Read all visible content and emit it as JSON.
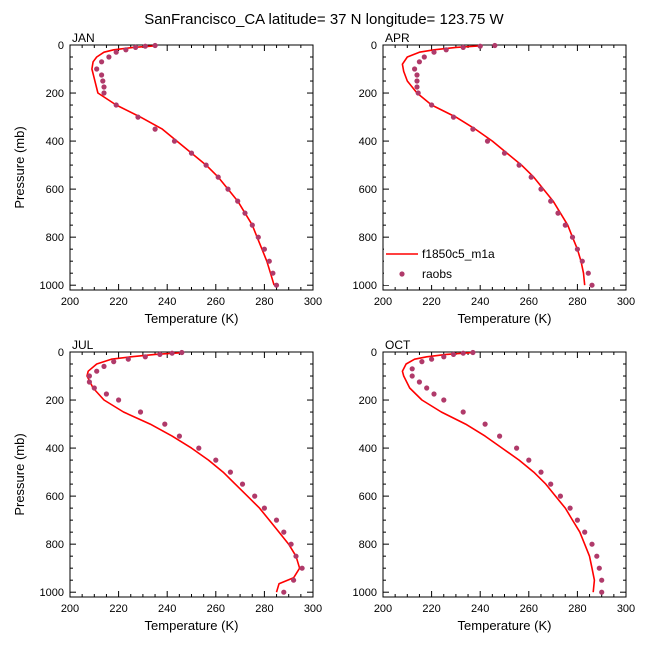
{
  "figure": {
    "title": "SanFrancisco_CA  latitude= 37 N longitude= 123.75 W"
  },
  "colors": {
    "model": "#ff0000",
    "obs": "#b03a6a",
    "axis": "#000000"
  },
  "chart_data": [
    {
      "type": "line",
      "panel": "JAN",
      "xlabel": "Temperature (K)",
      "ylabel": "Pressure (mb)",
      "xlim": [
        200,
        300
      ],
      "ylim": [
        1020,
        0
      ],
      "xticks": [
        "200",
        "220",
        "240",
        "260",
        "280",
        "300"
      ],
      "yticks": [
        "0",
        "200",
        "400",
        "600",
        "800",
        "1000"
      ],
      "legend": null,
      "series": [
        {
          "name": "f1850c5_m1a",
          "kind": "line",
          "points": [
            [
              236,
              3
            ],
            [
              226,
              10
            ],
            [
              218,
              20
            ],
            [
              214,
              30
            ],
            [
              211,
              50
            ],
            [
              209.5,
              70
            ],
            [
              209,
              100
            ],
            [
              210,
              140
            ],
            [
              211.5,
              200
            ],
            [
              219,
              250
            ],
            [
              229,
              300
            ],
            [
              238,
              350
            ],
            [
              244,
              400
            ],
            [
              250,
              450
            ],
            [
              256,
              500
            ],
            [
              261,
              550
            ],
            [
              265,
              600
            ],
            [
              269,
              650
            ],
            [
              272,
              700
            ],
            [
              275,
              750
            ],
            [
              277,
              800
            ],
            [
              279,
              850
            ],
            [
              281,
              900
            ],
            [
              282.5,
              950
            ],
            [
              284,
              1000
            ]
          ]
        },
        {
          "name": "raobs",
          "kind": "points",
          "points": [
            [
              235,
              2
            ],
            [
              231,
              5
            ],
            [
              227,
              10
            ],
            [
              223,
              20
            ],
            [
              219,
              30
            ],
            [
              216,
              50
            ],
            [
              213,
              70
            ],
            [
              211,
              100
            ],
            [
              213,
              125
            ],
            [
              213.5,
              150
            ],
            [
              214,
              175
            ],
            [
              214,
              200
            ],
            [
              219,
              250
            ],
            [
              228,
              300
            ],
            [
              235,
              350
            ],
            [
              243,
              400
            ],
            [
              250,
              450
            ],
            [
              256,
              500
            ],
            [
              261,
              550
            ],
            [
              265,
              600
            ],
            [
              269,
              650
            ],
            [
              272,
              700
            ],
            [
              275,
              750
            ],
            [
              277.5,
              800
            ],
            [
              280,
              850
            ],
            [
              282,
              900
            ],
            [
              283.5,
              950
            ],
            [
              285,
              1000
            ]
          ]
        }
      ]
    },
    {
      "type": "line",
      "panel": "APR",
      "xlabel": "Temperature (K)",
      "ylabel": "",
      "xlim": [
        200,
        300
      ],
      "ylim": [
        1020,
        0
      ],
      "xticks": [
        "200",
        "220",
        "240",
        "260",
        "280",
        "300"
      ],
      "yticks": [
        "0",
        "200",
        "400",
        "600",
        "800",
        "1000"
      ],
      "legend": {
        "placement": "bottom-left",
        "entries": [
          "f1850c5_m1a",
          "raobs"
        ]
      },
      "series": [
        {
          "name": "f1850c5_m1a",
          "kind": "line",
          "points": [
            [
              241,
              3
            ],
            [
              230,
              10
            ],
            [
              221,
              20
            ],
            [
              215,
              30
            ],
            [
              210,
              50
            ],
            [
              208,
              80
            ],
            [
              208.5,
              110
            ],
            [
              210,
              150
            ],
            [
              214,
              200
            ],
            [
              220,
              250
            ],
            [
              230,
              300
            ],
            [
              238,
              350
            ],
            [
              245,
              400
            ],
            [
              251,
              450
            ],
            [
              257,
              500
            ],
            [
              262,
              550
            ],
            [
              266,
              600
            ],
            [
              270,
              650
            ],
            [
              273,
              700
            ],
            [
              276,
              750
            ],
            [
              278,
              800
            ],
            [
              280,
              850
            ],
            [
              281.5,
              900
            ],
            [
              282.5,
              950
            ],
            [
              283,
              1000
            ]
          ]
        },
        {
          "name": "raobs",
          "kind": "points",
          "points": [
            [
              246,
              2
            ],
            [
              240,
              5
            ],
            [
              233,
              10
            ],
            [
              226,
              20
            ],
            [
              221,
              30
            ],
            [
              217,
              50
            ],
            [
              215,
              70
            ],
            [
              213,
              100
            ],
            [
              214,
              125
            ],
            [
              214,
              150
            ],
            [
              214,
              175
            ],
            [
              214.5,
              200
            ],
            [
              220,
              250
            ],
            [
              229,
              300
            ],
            [
              237,
              350
            ],
            [
              243,
              400
            ],
            [
              250,
              450
            ],
            [
              256,
              500
            ],
            [
              261,
              550
            ],
            [
              265,
              600
            ],
            [
              269,
              650
            ],
            [
              272,
              700
            ],
            [
              275,
              750
            ],
            [
              278,
              800
            ],
            [
              280,
              850
            ],
            [
              282,
              900
            ],
            [
              284.5,
              950
            ],
            [
              286,
              1000
            ]
          ]
        }
      ]
    },
    {
      "type": "line",
      "panel": "JUL",
      "xlabel": "Temperature (K)",
      "ylabel": "Pressure (mb)",
      "xlim": [
        200,
        300
      ],
      "ylim": [
        1020,
        0
      ],
      "xticks": [
        "200",
        "220",
        "240",
        "260",
        "280",
        "300"
      ],
      "yticks": [
        "0",
        "200",
        "400",
        "600",
        "800",
        "1000"
      ],
      "legend": null,
      "series": [
        {
          "name": "f1850c5_m1a",
          "kind": "line",
          "points": [
            [
              246,
              3
            ],
            [
              235,
              10
            ],
            [
              225,
              20
            ],
            [
              217,
              30
            ],
            [
              211,
              50
            ],
            [
              207.5,
              80
            ],
            [
              207,
              100
            ],
            [
              209.5,
              150
            ],
            [
              214,
              200
            ],
            [
              222,
              250
            ],
            [
              233,
              300
            ],
            [
              242,
              350
            ],
            [
              250,
              400
            ],
            [
              257,
              450
            ],
            [
              263,
              500
            ],
            [
              268,
              550
            ],
            [
              273,
              600
            ],
            [
              278,
              650
            ],
            [
              282,
              700
            ],
            [
              286,
              750
            ],
            [
              290,
              800
            ],
            [
              293,
              850
            ],
            [
              294.5,
              900
            ],
            [
              292,
              940
            ],
            [
              286,
              965
            ],
            [
              285,
              1000
            ]
          ]
        },
        {
          "name": "raobs",
          "kind": "points",
          "points": [
            [
              246,
              2
            ],
            [
              242,
              5
            ],
            [
              237,
              10
            ],
            [
              231,
              20
            ],
            [
              224,
              30
            ],
            [
              218,
              40
            ],
            [
              214,
              60
            ],
            [
              211,
              80
            ],
            [
              208,
              100
            ],
            [
              208,
              125
            ],
            [
              210,
              150
            ],
            [
              215,
              175
            ],
            [
              220,
              200
            ],
            [
              229,
              250
            ],
            [
              239,
              300
            ],
            [
              245,
              350
            ],
            [
              253,
              400
            ],
            [
              260,
              450
            ],
            [
              266,
              500
            ],
            [
              271,
              550
            ],
            [
              276,
              600
            ],
            [
              280,
              650
            ],
            [
              285,
              700
            ],
            [
              288,
              750
            ],
            [
              291,
              800
            ],
            [
              293,
              850
            ],
            [
              295.5,
              900
            ],
            [
              292,
              950
            ],
            [
              288,
              1000
            ]
          ]
        }
      ]
    },
    {
      "type": "line",
      "panel": "OCT",
      "xlabel": "Temperature (K)",
      "ylabel": "",
      "xlim": [
        200,
        300
      ],
      "ylim": [
        1020,
        0
      ],
      "xticks": [
        "200",
        "220",
        "240",
        "260",
        "280",
        "300"
      ],
      "yticks": [
        "0",
        "200",
        "400",
        "600",
        "800",
        "1000"
      ],
      "legend": null,
      "series": [
        {
          "name": "f1850c5_m1a",
          "kind": "line",
          "points": [
            [
              236,
              3
            ],
            [
              226,
              10
            ],
            [
              218,
              20
            ],
            [
              213,
              30
            ],
            [
              209.5,
              50
            ],
            [
              208,
              80
            ],
            [
              208.5,
              100
            ],
            [
              211,
              150
            ],
            [
              216,
              200
            ],
            [
              224,
              250
            ],
            [
              234,
              300
            ],
            [
              242,
              350
            ],
            [
              249,
              400
            ],
            [
              256,
              450
            ],
            [
              262,
              500
            ],
            [
              267,
              550
            ],
            [
              271,
              600
            ],
            [
              275,
              650
            ],
            [
              278,
              700
            ],
            [
              281,
              750
            ],
            [
              283,
              800
            ],
            [
              285,
              850
            ],
            [
              286,
              900
            ],
            [
              287,
              950
            ],
            [
              286.5,
              1000
            ]
          ]
        },
        {
          "name": "raobs",
          "kind": "points",
          "points": [
            [
              237,
              2
            ],
            [
              233,
              5
            ],
            [
              229,
              10
            ],
            [
              225,
              20
            ],
            [
              220,
              30
            ],
            [
              216,
              40
            ],
            [
              212,
              70
            ],
            [
              212,
              100
            ],
            [
              215,
              125
            ],
            [
              218,
              150
            ],
            [
              221,
              175
            ],
            [
              225,
              200
            ],
            [
              233,
              250
            ],
            [
              242,
              300
            ],
            [
              248,
              350
            ],
            [
              255,
              400
            ],
            [
              260,
              450
            ],
            [
              265,
              500
            ],
            [
              269,
              550
            ],
            [
              273,
              600
            ],
            [
              277,
              650
            ],
            [
              280,
              700
            ],
            [
              283,
              750
            ],
            [
              286,
              800
            ],
            [
              288,
              850
            ],
            [
              289,
              900
            ],
            [
              290,
              950
            ],
            [
              290,
              1000
            ]
          ]
        }
      ]
    }
  ]
}
